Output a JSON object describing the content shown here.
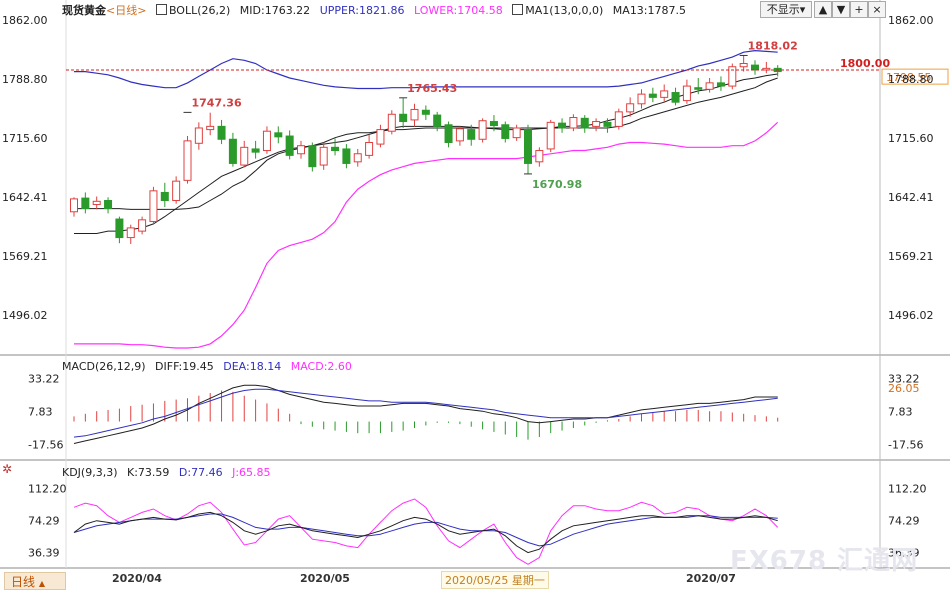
{
  "header": {
    "symbol": "现货黄金",
    "period": "<日线>",
    "boll": "BOLL(26,2)",
    "mid": "MID:1763.22",
    "upper": "UPPER:1821.86",
    "lower": "LOWER:1704.58",
    "ma": "MA1(13,0,0,0)",
    "ma13": "MA13:1787.5",
    "hide_button": "不显示",
    "hide_arrow": "▾"
  },
  "macd_legend": {
    "name": "MACD(26,12,9)",
    "diff": "DIFF:19.45",
    "dea": "DEA:18.14",
    "macd": "MACD:2.60"
  },
  "kdj_legend": {
    "name": "KDJ(9,3,3)",
    "k": "K:73.59",
    "d": "D:77.46",
    "j": "J:65.85"
  },
  "bottom": {
    "tab": "日线",
    "tab_arrow": "▲",
    "dates": [
      "2020/04",
      "2020/05",
      "2020/07"
    ],
    "hover_date": "2020/05/25 星期一"
  },
  "watermark": "FX678 汇通网",
  "colors": {
    "up": "#e04040",
    "down": "#2a9a2a",
    "upper": "#3030c0",
    "lower": "#ff30ff",
    "mid": "#202020",
    "ma": "#202020",
    "ref": "#d02020"
  },
  "chart_data": [
    {
      "type": "candlestick",
      "title": "现货黄金",
      "ylim": [
        1450,
        1862
      ],
      "yticks": [
        "1862.00",
        "1788.80",
        "1715.60",
        "1642.41",
        "1569.21",
        "1496.02"
      ],
      "reference_line": {
        "value": 1800,
        "label": "1800.00"
      },
      "last_price_label": "1798.55",
      "annotations": [
        {
          "label": "1747.36",
          "index": 10,
          "value": 1747.36
        },
        {
          "label": "1765.43",
          "index": 29,
          "value": 1765.43
        },
        {
          "label": "1670.98",
          "index": 40,
          "value": 1670.98
        },
        {
          "label": "1818.02",
          "index": 59,
          "value": 1818.02
        }
      ],
      "candles": [
        [
          1624,
          1640,
          1618,
          1642
        ],
        [
          1641,
          1628,
          1622,
          1648
        ],
        [
          1633,
          1637,
          1627,
          1643
        ],
        [
          1638,
          1628,
          1622,
          1642
        ],
        [
          1615,
          1592,
          1585,
          1618
        ],
        [
          1592,
          1604,
          1584,
          1608
        ],
        [
          1600,
          1614,
          1596,
          1618
        ],
        [
          1612,
          1650,
          1608,
          1655
        ],
        [
          1648,
          1638,
          1630,
          1660
        ],
        [
          1638,
          1662,
          1634,
          1668
        ],
        [
          1663,
          1712,
          1659,
          1718
        ],
        [
          1709,
          1728,
          1701,
          1735
        ],
        [
          1726,
          1730,
          1719,
          1747
        ],
        [
          1730,
          1714,
          1708,
          1738
        ],
        [
          1714,
          1684,
          1680,
          1722
        ],
        [
          1682,
          1704,
          1679,
          1712
        ],
        [
          1702,
          1698,
          1690,
          1712
        ],
        [
          1700,
          1724,
          1696,
          1730
        ],
        [
          1722,
          1717,
          1709,
          1730
        ],
        [
          1718,
          1694,
          1689,
          1725
        ],
        [
          1696,
          1706,
          1690,
          1712
        ],
        [
          1706,
          1680,
          1674,
          1710
        ],
        [
          1682,
          1704,
          1676,
          1710
        ],
        [
          1704,
          1700,
          1694,
          1715
        ],
        [
          1702,
          1684,
          1678,
          1708
        ],
        [
          1686,
          1696,
          1680,
          1702
        ],
        [
          1694,
          1710,
          1690,
          1720
        ],
        [
          1708,
          1726,
          1704,
          1732
        ],
        [
          1724,
          1745,
          1720,
          1750
        ],
        [
          1745,
          1736,
          1728,
          1765
        ],
        [
          1738,
          1751,
          1730,
          1758
        ],
        [
          1750,
          1745,
          1738,
          1756
        ],
        [
          1744,
          1730,
          1724,
          1748
        ],
        [
          1732,
          1710,
          1704,
          1736
        ],
        [
          1712,
          1727,
          1706,
          1730
        ],
        [
          1726,
          1714,
          1706,
          1732
        ],
        [
          1714,
          1737,
          1710,
          1740
        ],
        [
          1736,
          1731,
          1724,
          1744
        ],
        [
          1732,
          1715,
          1710,
          1736
        ],
        [
          1716,
          1728,
          1712,
          1732
        ],
        [
          1726,
          1684,
          1671,
          1732
        ],
        [
          1686,
          1700,
          1680,
          1704
        ],
        [
          1702,
          1735,
          1698,
          1738
        ],
        [
          1734,
          1728,
          1722,
          1740
        ],
        [
          1728,
          1741,
          1724,
          1745
        ],
        [
          1740,
          1728,
          1722,
          1744
        ],
        [
          1730,
          1736,
          1724,
          1740
        ],
        [
          1735,
          1730,
          1722,
          1740
        ],
        [
          1730,
          1748,
          1726,
          1752
        ],
        [
          1748,
          1758,
          1742,
          1766
        ],
        [
          1758,
          1770,
          1752,
          1776
        ],
        [
          1770,
          1766,
          1760,
          1778
        ],
        [
          1766,
          1774,
          1760,
          1782
        ],
        [
          1772,
          1760,
          1756,
          1778
        ],
        [
          1762,
          1780,
          1758,
          1788
        ],
        [
          1778,
          1776,
          1770,
          1790
        ],
        [
          1776,
          1784,
          1772,
          1790
        ],
        [
          1784,
          1780,
          1774,
          1792
        ],
        [
          1780,
          1804,
          1776,
          1808
        ],
        [
          1804,
          1808,
          1798,
          1818
        ],
        [
          1806,
          1800,
          1794,
          1812
        ],
        [
          1800,
          1802,
          1796,
          1810
        ],
        [
          1802,
          1798,
          1792,
          1806
        ]
      ],
      "upper": [
        1798,
        1798,
        1796,
        1794,
        1790,
        1785,
        1782,
        1780,
        1778,
        1778,
        1784,
        1792,
        1800,
        1808,
        1814,
        1812,
        1808,
        1800,
        1795,
        1790,
        1787,
        1784,
        1781,
        1779,
        1778,
        1777,
        1777,
        1777,
        1778,
        1778,
        1778,
        1779,
        1779,
        1779,
        1779,
        1779,
        1779,
        1779,
        1779,
        1779,
        1779,
        1779,
        1779,
        1779,
        1779,
        1779,
        1779,
        1779,
        1780,
        1782,
        1784,
        1788,
        1792,
        1796,
        1800,
        1805,
        1808,
        1812,
        1816,
        1822,
        1824,
        1823,
        1822
      ],
      "lower": [
        1460,
        1460,
        1460,
        1460,
        1460,
        1459,
        1459,
        1458,
        1456,
        1455,
        1455,
        1456,
        1460,
        1470,
        1484,
        1502,
        1530,
        1560,
        1576,
        1582,
        1586,
        1590,
        1598,
        1612,
        1636,
        1652,
        1662,
        1670,
        1676,
        1680,
        1684,
        1686,
        1688,
        1690,
        1690,
        1690,
        1690,
        1690,
        1690,
        1690,
        1692,
        1694,
        1696,
        1698,
        1700,
        1700,
        1702,
        1704,
        1708,
        1710,
        1710,
        1709,
        1708,
        1706,
        1704,
        1704,
        1704,
        1704,
        1706,
        1706,
        1712,
        1722,
        1735
      ],
      "mid": [
        1628,
        1628,
        1628,
        1628,
        1628,
        1627,
        1627,
        1627,
        1627,
        1627,
        1628,
        1630,
        1638,
        1646,
        1656,
        1663,
        1675,
        1688,
        1696,
        1700,
        1703,
        1706,
        1710,
        1716,
        1720,
        1722,
        1722,
        1724,
        1726,
        1726,
        1727,
        1728,
        1728,
        1728,
        1728,
        1728,
        1728,
        1728,
        1728,
        1728,
        1728,
        1728,
        1728,
        1728,
        1728,
        1728,
        1728,
        1728,
        1730,
        1734,
        1740,
        1744,
        1748,
        1752,
        1756,
        1760,
        1763,
        1766,
        1770,
        1774,
        1778,
        1785,
        1790
      ],
      "ma13": [
        1597,
        1597,
        1597,
        1600,
        1600,
        1602,
        1604,
        1609,
        1618,
        1628,
        1638,
        1648,
        1658,
        1668,
        1674,
        1680,
        1686,
        1692,
        1698,
        1702,
        1704,
        1706,
        1708,
        1710,
        1712,
        1716,
        1720,
        1724,
        1728,
        1730,
        1730,
        1730,
        1730,
        1730,
        1730,
        1729,
        1728,
        1727,
        1726,
        1726,
        1726,
        1727,
        1728,
        1730,
        1730,
        1731,
        1733,
        1737,
        1740,
        1744,
        1750,
        1756,
        1760,
        1766,
        1770,
        1774,
        1776,
        1780,
        1784,
        1788,
        1790,
        1793,
        1795
      ]
    },
    {
      "type": "bar+line",
      "title": "MACD(26,12,9)",
      "ylim": [
        -22,
        36
      ],
      "yticks": [
        "33.22",
        "7.83",
        "-17.56"
      ],
      "last_label": "26.05",
      "diff": [
        -17,
        -15,
        -13,
        -11,
        -9,
        -7,
        -5,
        -2,
        2,
        5,
        9,
        14,
        18,
        22,
        26,
        28,
        28,
        27,
        24,
        21,
        19,
        17,
        15,
        14,
        13,
        12,
        12,
        12,
        13,
        14,
        14,
        14,
        13,
        12,
        10,
        9,
        8,
        6,
        5,
        3,
        0,
        -1,
        0,
        1,
        2,
        2,
        3,
        3,
        5,
        7,
        9,
        10,
        11,
        12,
        13,
        14,
        14,
        15,
        16,
        17,
        19,
        19,
        19
      ],
      "dea": [
        -12,
        -11,
        -9,
        -7,
        -5,
        -3,
        -1,
        2,
        4,
        7,
        10,
        13,
        16,
        19,
        22,
        24,
        25,
        25,
        24,
        23,
        22,
        21,
        20,
        19,
        18,
        17,
        16,
        16,
        15,
        15,
        15,
        15,
        14,
        13,
        12,
        11,
        10,
        9,
        7,
        6,
        5,
        4,
        3,
        3,
        3,
        3,
        3,
        3,
        4,
        5,
        6,
        7,
        8,
        9,
        10,
        11,
        12,
        13,
        14,
        15,
        16,
        17,
        18
      ],
      "macd": [
        -5,
        -4,
        -4,
        -4,
        -4,
        -4,
        -4,
        -4,
        -2,
        -2,
        -1,
        1,
        2,
        3,
        4,
        4,
        3,
        2,
        0,
        -2,
        -3,
        -4,
        -5,
        -5,
        -5,
        -5,
        -4,
        -4,
        -2,
        -1,
        -1,
        -1,
        -1,
        -1,
        -2,
        -2,
        -2,
        -3,
        -2,
        -3,
        -5,
        -5,
        -3,
        -2,
        -1,
        -1,
        0,
        0,
        1,
        2,
        3,
        3,
        3,
        3,
        3,
        3,
        2,
        2,
        2,
        2,
        3,
        2,
        1
      ],
      "macd_bars": [
        4,
        6,
        8,
        9,
        10,
        12,
        13,
        14,
        16,
        17,
        18,
        20,
        22,
        24,
        23,
        20,
        17,
        14,
        10,
        6,
        -2,
        -4,
        -6,
        -7,
        -8,
        -9,
        -9,
        -9,
        -8,
        -7,
        -5,
        -3,
        -1,
        -1,
        -2,
        -4,
        -6,
        -8,
        -10,
        -12,
        -14,
        -12,
        -9,
        -7,
        -5,
        -3,
        -1,
        1,
        2,
        4,
        6,
        7,
        8,
        8,
        9,
        9,
        8,
        8,
        7,
        6,
        5,
        4,
        3
      ]
    },
    {
      "type": "line",
      "title": "KDJ(9,3,3)",
      "ylim": [
        20,
        125
      ],
      "yticks": [
        "112.20",
        "74.29",
        "36.39"
      ],
      "k": [
        60,
        70,
        74,
        72,
        70,
        74,
        76,
        78,
        76,
        75,
        78,
        82,
        84,
        80,
        72,
        62,
        58,
        62,
        68,
        70,
        66,
        62,
        60,
        58,
        56,
        54,
        58,
        62,
        68,
        74,
        78,
        76,
        70,
        62,
        58,
        60,
        62,
        64,
        56,
        44,
        36,
        40,
        52,
        62,
        68,
        70,
        72,
        74,
        76,
        78,
        80,
        80,
        78,
        78,
        80,
        80,
        78,
        76,
        76,
        78,
        80,
        78,
        74
      ],
      "d": [
        60,
        64,
        68,
        70,
        72,
        74,
        76,
        76,
        76,
        76,
        78,
        80,
        82,
        82,
        78,
        72,
        66,
        64,
        64,
        66,
        66,
        64,
        62,
        60,
        58,
        56,
        56,
        58,
        62,
        66,
        70,
        72,
        72,
        68,
        64,
        62,
        62,
        62,
        60,
        54,
        48,
        44,
        46,
        52,
        58,
        62,
        66,
        70,
        72,
        74,
        76,
        78,
        78,
        78,
        78,
        80,
        80,
        78,
        78,
        78,
        78,
        78,
        77
      ],
      "j": [
        90,
        95,
        92,
        80,
        72,
        78,
        84,
        88,
        80,
        75,
        82,
        92,
        96,
        84,
        64,
        45,
        48,
        62,
        76,
        80,
        66,
        52,
        50,
        48,
        44,
        42,
        58,
        72,
        86,
        95,
        100,
        90,
        68,
        50,
        42,
        52,
        62,
        70,
        48,
        30,
        22,
        30,
        62,
        80,
        92,
        92,
        88,
        86,
        86,
        90,
        96,
        92,
        82,
        84,
        90,
        88,
        80,
        76,
        74,
        80,
        88,
        80,
        66
      ]
    }
  ]
}
